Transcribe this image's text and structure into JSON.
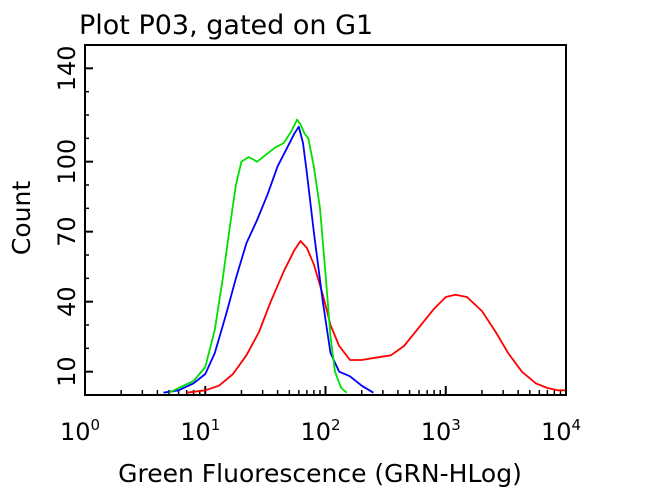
{
  "chart_data": {
    "type": "line",
    "title": "Plot P03, gated on G1",
    "xlabel": "Green Fluorescence (GRN-HLog)",
    "ylabel": "Count",
    "x_scale": "log",
    "xlim": [
      1,
      10000
    ],
    "ylim": [
      0,
      150
    ],
    "x_ticks": [
      {
        "value": 1,
        "base": "10",
        "exp": "0"
      },
      {
        "value": 10,
        "base": "10",
        "exp": "1"
      },
      {
        "value": 100,
        "base": "10",
        "exp": "2"
      },
      {
        "value": 1000,
        "base": "10",
        "exp": "3"
      },
      {
        "value": 10000,
        "base": "10",
        "exp": "4"
      }
    ],
    "y_ticks": [
      10,
      40,
      70,
      100,
      140
    ],
    "grid": false,
    "series": [
      {
        "color": "#ff0000",
        "x": [
          7,
          10,
          13,
          17,
          22,
          28,
          35,
          45,
          55,
          62,
          70,
          80,
          95,
          110,
          130,
          160,
          200,
          260,
          350,
          450,
          600,
          800,
          1000,
          1200,
          1500,
          2000,
          2600,
          3300,
          4300,
          5600,
          7000,
          8500,
          10000
        ],
        "y": [
          1,
          2,
          4,
          9,
          17,
          27,
          40,
          53,
          62,
          66,
          63,
          56,
          43,
          30,
          21,
          15,
          15,
          16,
          17,
          21,
          29,
          37,
          42,
          43,
          42,
          36,
          27,
          18,
          10,
          5,
          3,
          2,
          2
        ]
      },
      {
        "color": "#0000ff",
        "x": [
          4.5,
          6,
          8,
          10,
          12,
          15,
          18,
          22,
          27,
          33,
          40,
          48,
          55,
          60,
          65,
          70,
          80,
          95,
          110,
          130,
          160,
          200,
          250
        ],
        "y": [
          1,
          2,
          5,
          9,
          18,
          35,
          50,
          65,
          75,
          86,
          98,
          106,
          112,
          115,
          108,
          95,
          70,
          40,
          18,
          10,
          8,
          4,
          1
        ]
      },
      {
        "color": "#00e000",
        "x": [
          5,
          6,
          8,
          10,
          12,
          14,
          16,
          18,
          20,
          23,
          27,
          32,
          38,
          45,
          52,
          58,
          62,
          67,
          72,
          80,
          90,
          100,
          110,
          120,
          135,
          150
        ],
        "y": [
          1,
          3,
          6,
          12,
          28,
          50,
          72,
          90,
          100,
          102,
          100,
          103,
          106,
          108,
          113,
          118,
          116,
          112,
          110,
          98,
          80,
          52,
          25,
          10,
          3,
          1
        ]
      }
    ]
  }
}
